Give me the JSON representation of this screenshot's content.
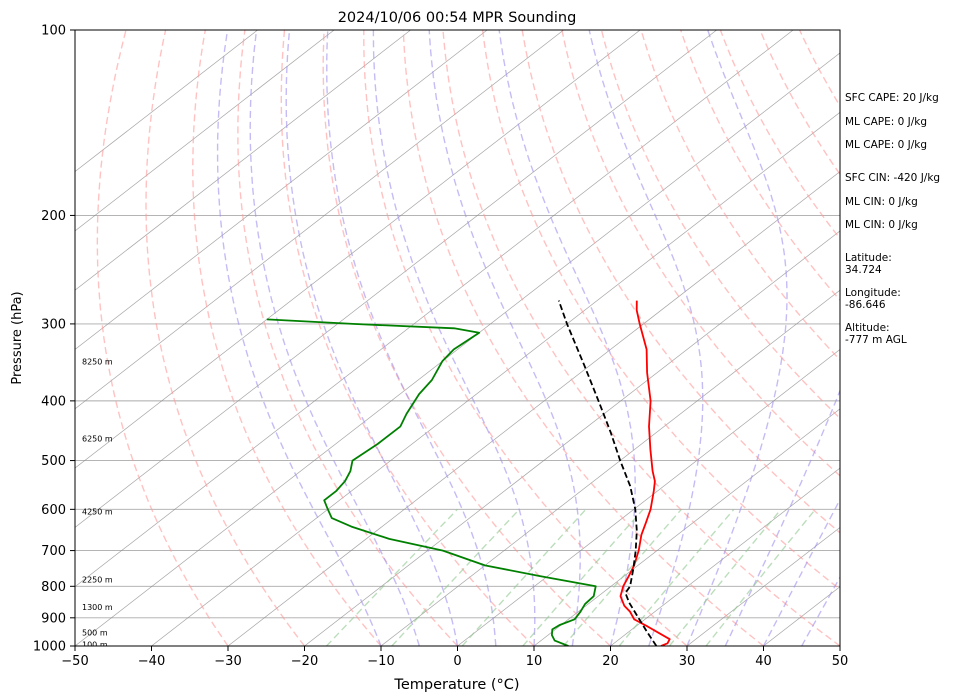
{
  "chart_data": {
    "type": "skew-t log-p sounding",
    "title": "2024/10/06 00:54 MPR Sounding",
    "xlabel": "Temperature (°C)",
    "ylabel": "Pressure (hPa)",
    "xlim": [
      -50,
      50
    ],
    "ylim": [
      1000,
      100
    ],
    "y_scale": "log",
    "grid": true,
    "x_ticks": [
      "−50",
      "−40",
      "−30",
      "−20",
      "−10",
      "0",
      "10",
      "20",
      "30",
      "40",
      "50"
    ],
    "y_ticks": [
      "100",
      "200",
      "300",
      "400",
      "500",
      "600",
      "700",
      "800",
      "900",
      "1000"
    ],
    "height_labels": [
      {
        "label": "100 m",
        "p": 995
      },
      {
        "label": "500 m",
        "p": 950
      },
      {
        "label": "1300 m",
        "p": 865
      },
      {
        "label": "2250 m",
        "p": 780
      },
      {
        "label": "4250 m",
        "p": 605
      },
      {
        "label": "6250 m",
        "p": 460
      },
      {
        "label": "8250 m",
        "p": 345
      }
    ],
    "series": [
      {
        "name": "Temperature",
        "color": "#ff0000",
        "style": "solid",
        "points": [
          [
            1000,
            26.6
          ],
          [
            990,
            27.0
          ],
          [
            975,
            26.6
          ],
          [
            955,
            24.4
          ],
          [
            930,
            21.6
          ],
          [
            905,
            18.6
          ],
          [
            880,
            16.8
          ],
          [
            860,
            15.0
          ],
          [
            830,
            12.9
          ],
          [
            800,
            11.6
          ],
          [
            770,
            10.6
          ],
          [
            740,
            9.5
          ],
          [
            700,
            7.6
          ],
          [
            660,
            5.3
          ],
          [
            630,
            3.8
          ],
          [
            600,
            2.2
          ],
          [
            560,
            -0.5
          ],
          [
            540,
            -2.0
          ],
          [
            520,
            -4.0
          ],
          [
            480,
            -7.9
          ],
          [
            440,
            -12.0
          ],
          [
            400,
            -16.1
          ],
          [
            360,
            -21.3
          ],
          [
            330,
            -25.3
          ],
          [
            300,
            -30.5
          ],
          [
            285,
            -33.2
          ],
          [
            275,
            -34.8
          ]
        ]
      },
      {
        "name": "Dewpoint",
        "color": "#008000",
        "style": "solid",
        "points": [
          [
            1000,
            14.5
          ],
          [
            980,
            11.8
          ],
          [
            960,
            10.5
          ],
          [
            940,
            9.6
          ],
          [
            925,
            9.8
          ],
          [
            905,
            10.8
          ],
          [
            880,
            10.3
          ],
          [
            855,
            9.6
          ],
          [
            830,
            9.4
          ],
          [
            800,
            8.0
          ],
          [
            770,
            -1.0
          ],
          [
            740,
            -10.0
          ],
          [
            700,
            -18.0
          ],
          [
            670,
            -27.0
          ],
          [
            640,
            -34.0
          ],
          [
            620,
            -38.0
          ],
          [
            600,
            -40.0
          ],
          [
            580,
            -42.0
          ],
          [
            560,
            -42.0
          ],
          [
            540,
            -42.5
          ],
          [
            520,
            -43.5
          ],
          [
            500,
            -45.0
          ],
          [
            470,
            -44.5
          ],
          [
            440,
            -44.5
          ],
          [
            420,
            -45.8
          ],
          [
            390,
            -47.5
          ],
          [
            370,
            -48.2
          ],
          [
            345,
            -50.0
          ],
          [
            330,
            -50.5
          ],
          [
            310,
            -50.0
          ],
          [
            305,
            -54.0
          ],
          [
            300,
            -68.0
          ],
          [
            295,
            -80.0
          ]
        ]
      },
      {
        "name": "Parcel profile",
        "color": "#000000",
        "style": "dashed",
        "points": [
          [
            1000,
            26.0
          ],
          [
            950,
            22.5
          ],
          [
            900,
            18.9
          ],
          [
            850,
            15.1
          ],
          [
            820,
            13.0
          ],
          [
            800,
            12.5
          ],
          [
            750,
            10.0
          ],
          [
            700,
            7.2
          ],
          [
            650,
            4.0
          ],
          [
            600,
            0.2
          ],
          [
            550,
            -4.4
          ],
          [
            500,
            -10.0
          ],
          [
            450,
            -16.0
          ],
          [
            400,
            -22.9
          ],
          [
            350,
            -30.8
          ],
          [
            300,
            -40.0
          ],
          [
            275,
            -45.0
          ]
        ]
      }
    ],
    "reference_lines": {
      "isotherms_C": [
        -130,
        -120,
        -110,
        -100,
        -90,
        -80,
        -70,
        -60,
        -50,
        -40,
        -30,
        -20,
        -10,
        0,
        10,
        20,
        30,
        40,
        50
      ],
      "dry_adiabats_C": [
        -30,
        -20,
        -10,
        0,
        10,
        20,
        30,
        40,
        50,
        60,
        70,
        80,
        90,
        100,
        110,
        120,
        130,
        140,
        150
      ],
      "moist_adiabats_C": [
        -10,
        -5,
        0,
        5,
        10,
        15,
        20,
        25,
        30,
        35,
        40,
        45
      ],
      "mixing_ratio_g_per_kg": [
        1,
        2,
        4,
        7,
        10,
        16,
        24,
        32
      ]
    },
    "annotations": [
      "SFC CAPE: 20 J/kg",
      "ML CAPE: 0 J/kg",
      "ML CAPE: 0 J/kg",
      "SFC CIN: -420 J/kg",
      "ML CIN: 0 J/kg",
      "ML CIN: 0 J/kg",
      "Latitude:",
      "34.724",
      "Longitude:",
      "-86.646",
      "Altitude:",
      "-777 m AGL"
    ]
  },
  "colors": {
    "temperature": "#ff0000",
    "dewpoint": "#008000",
    "parcel": "#000000",
    "dry_adiabat": "#ff9999",
    "moist_adiabat": "#9f8fef",
    "mixing_ratio": "#8fc88f",
    "isotherm": "#888888",
    "grid": "#aaaaaa"
  }
}
